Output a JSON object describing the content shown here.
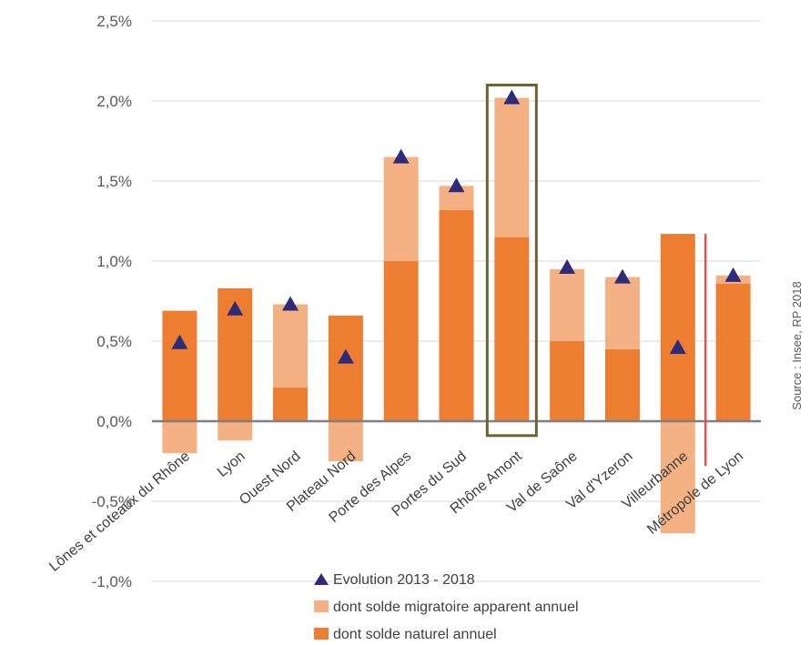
{
  "chart_data": {
    "type": "bar",
    "stacked": true,
    "categories": [
      "Lônes et coteaux du Rhône",
      "Lyon",
      "Ouest Nord",
      "Plateau Nord",
      "Porte des Alpes",
      "Portes du Sud",
      "Rhône Amont",
      "Val de Saône",
      "Val d'Yzeron",
      "Villeurbanne",
      "Métropole de Lyon"
    ],
    "series": [
      {
        "name": "dont solde naturel annuel",
        "type": "bar",
        "color": "#ED7D31",
        "values": [
          0.69,
          0.83,
          0.21,
          0.66,
          1.0,
          1.32,
          1.15,
          0.5,
          0.45,
          1.17,
          0.86
        ]
      },
      {
        "name": "dont solde migratoire apparent annuel",
        "type": "bar",
        "color": "#F4B183",
        "values": [
          -0.2,
          -0.12,
          0.52,
          -0.25,
          0.65,
          0.15,
          0.87,
          0.45,
          0.45,
          -0.7,
          0.05
        ]
      },
      {
        "name": "Evolution 2013 - 2018",
        "type": "marker",
        "marker": "triangle",
        "color": "#2E2B7A",
        "values": [
          0.49,
          0.7,
          0.73,
          0.4,
          1.65,
          1.47,
          2.02,
          0.96,
          0.9,
          0.46,
          0.91
        ]
      }
    ],
    "y_ticks": [
      "2,5%",
      "2,0%",
      "1,5%",
      "1,0%",
      "0,5%",
      "0,0%",
      "-0,5%",
      "-1,0%"
    ],
    "ylim": [
      -1.0,
      2.5
    ],
    "grid": true,
    "legend_position": "bottom",
    "highlight_category": "Rhône Amont",
    "highlight_color": "#6B6333",
    "separator_color": "#E0524A",
    "source": "Source : Insee, RP 2018"
  }
}
